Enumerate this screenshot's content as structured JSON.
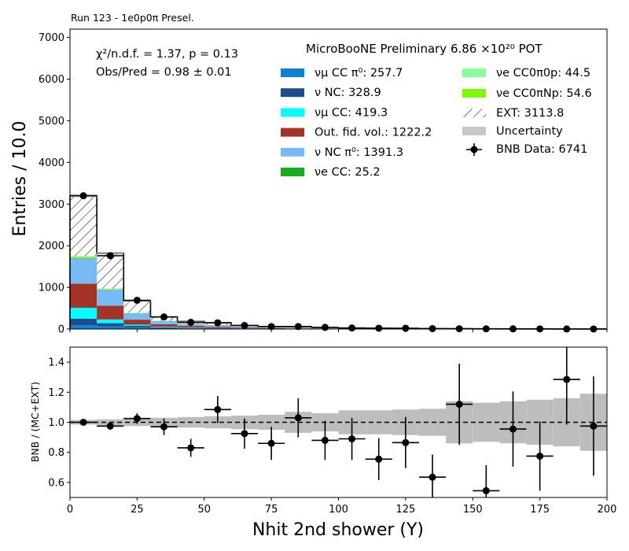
{
  "chart_data": [
    {
      "type": "bar",
      "stacked": true,
      "title": "Run 123 - 1e0p0π Presel.",
      "xlabel": "Nhit 2nd shower (Y)",
      "ylabel": "Entries / 10.0",
      "xlim": [
        0,
        200
      ],
      "ylim": [
        0,
        7200
      ],
      "xticks": [
        0,
        25,
        50,
        75,
        100,
        125,
        150,
        175,
        200
      ],
      "yticks": [
        0,
        1000,
        2000,
        3000,
        4000,
        5000,
        6000,
        7000
      ],
      "bin_edges": [
        0,
        10,
        20,
        30,
        40,
        50,
        60,
        70,
        80,
        90,
        100,
        110,
        120,
        130,
        140,
        150,
        160,
        170,
        180,
        190,
        200
      ],
      "annotations": {
        "chi2": "χ²/n.d.f. = 1.37, p = 0.13",
        "obs_pred": "Obs/Pred = 0.98 ± 0.01",
        "header": "MicroBooNE Preliminary 6.86 ×10²⁰ POT"
      },
      "legend_placement": "top-right",
      "series": [
        {
          "name": "νμ CC π⁰: 257.7",
          "color": "#0a83d1",
          "values": [
            90,
            60,
            35,
            20,
            12,
            10,
            6,
            5,
            4,
            3,
            3,
            2,
            2,
            1,
            1,
            1,
            1,
            1,
            0,
            0
          ]
        },
        {
          "name": "ν NC: 328.9",
          "color": "#1f4b8f",
          "values": [
            160,
            80,
            40,
            20,
            12,
            8,
            4,
            2,
            1,
            1,
            0,
            0,
            0,
            0,
            0,
            0,
            0,
            0,
            0,
            0
          ]
        },
        {
          "name": "νμ CC: 419.3",
          "color": "#00ffff",
          "values": [
            260,
            90,
            30,
            15,
            10,
            6,
            4,
            2,
            1,
            1,
            0,
            0,
            0,
            0,
            0,
            0,
            0,
            0,
            0,
            0
          ]
        },
        {
          "name": "Out. fid. vol.: 1222.2",
          "color": "#a33326",
          "values": [
            580,
            330,
            120,
            60,
            40,
            30,
            20,
            14,
            10,
            8,
            4,
            3,
            2,
            1,
            0,
            0,
            0,
            0,
            0,
            0
          ]
        },
        {
          "name": "ν NC π⁰: 1391.3",
          "color": "#78baf5",
          "values": [
            600,
            380,
            150,
            75,
            50,
            40,
            28,
            20,
            15,
            11,
            8,
            6,
            4,
            3,
            2,
            1,
            1,
            1,
            0,
            0
          ]
        },
        {
          "name": "νe CC: 25.2",
          "color": "#1aac21",
          "values": [
            10,
            6,
            3,
            2,
            1,
            1,
            1,
            0,
            0,
            0,
            0,
            0,
            0,
            0,
            0,
            0,
            0,
            0,
            0,
            0
          ]
        },
        {
          "name": "νe CC0π0p: 44.5",
          "color": "#8afc98",
          "values": [
            20,
            12,
            5,
            3,
            2,
            1,
            1,
            0,
            0,
            0,
            0,
            0,
            0,
            0,
            0,
            0,
            0,
            0,
            0,
            0
          ]
        },
        {
          "name": "νe CC0πNp: 54.6",
          "color": "#7bfa06",
          "values": [
            25,
            14,
            6,
            4,
            2,
            1,
            1,
            1,
            0,
            0,
            0,
            0,
            0,
            0,
            0,
            0,
            0,
            0,
            0,
            0
          ]
        },
        {
          "name": "EXT: 3113.8",
          "color": "#ffffff",
          "hatch": true,
          "values": [
            1455,
            848,
            285,
            93,
            56,
            53,
            25,
            16,
            21,
            10,
            5,
            5,
            6,
            4,
            2,
            1,
            2,
            2,
            0,
            0
          ]
        }
      ],
      "uncertainty": {
        "name": "Uncertainty",
        "color": "#c8c8c8"
      },
      "data_points": {
        "name": "BNB Data: 6741",
        "x": [
          5,
          15,
          25,
          35,
          45,
          55,
          65,
          75,
          85,
          95,
          105,
          115,
          125,
          135,
          145,
          155,
          165,
          175,
          185,
          195
        ],
        "y": [
          3200,
          1760,
          690,
          290,
          160,
          150,
          85,
          60,
          60,
          40,
          25,
          20,
          18,
          10,
          8,
          5,
          4,
          3,
          2,
          1
        ]
      }
    },
    {
      "type": "scatter",
      "ylabel": "BNB / (MC+EXT)",
      "xlabel": "Nhit 2nd shower (Y)",
      "xlim": [
        0,
        200
      ],
      "ylim": [
        0.5,
        1.5
      ],
      "xticks": [
        0,
        25,
        50,
        75,
        100,
        125,
        150,
        175,
        200
      ],
      "yticks": [
        0.6,
        0.8,
        1.0,
        1.2,
        1.4
      ],
      "reference_line": 1.0,
      "x": [
        5,
        15,
        25,
        35,
        45,
        55,
        65,
        75,
        85,
        95,
        105,
        115,
        125,
        135,
        145,
        155,
        165,
        175,
        185,
        195
      ],
      "y": [
        1.0,
        0.975,
        1.025,
        0.97,
        0.83,
        1.085,
        0.925,
        0.86,
        1.03,
        0.88,
        0.89,
        0.755,
        0.865,
        0.635,
        1.12,
        0.545,
        0.955,
        0.775,
        1.285,
        0.975
      ],
      "yerr": [
        0.01,
        0.025,
        0.035,
        0.055,
        0.06,
        0.09,
        0.1,
        0.11,
        0.13,
        0.13,
        0.14,
        0.14,
        0.17,
        0.15,
        0.27,
        0.17,
        0.25,
        0.23,
        0.3,
        0.33
      ],
      "band_halfwidth": [
        0.015,
        0.02,
        0.025,
        0.03,
        0.035,
        0.04,
        0.045,
        0.05,
        0.07,
        0.06,
        0.08,
        0.08,
        0.085,
        0.09,
        0.14,
        0.13,
        0.14,
        0.15,
        0.16,
        0.19
      ]
    }
  ]
}
